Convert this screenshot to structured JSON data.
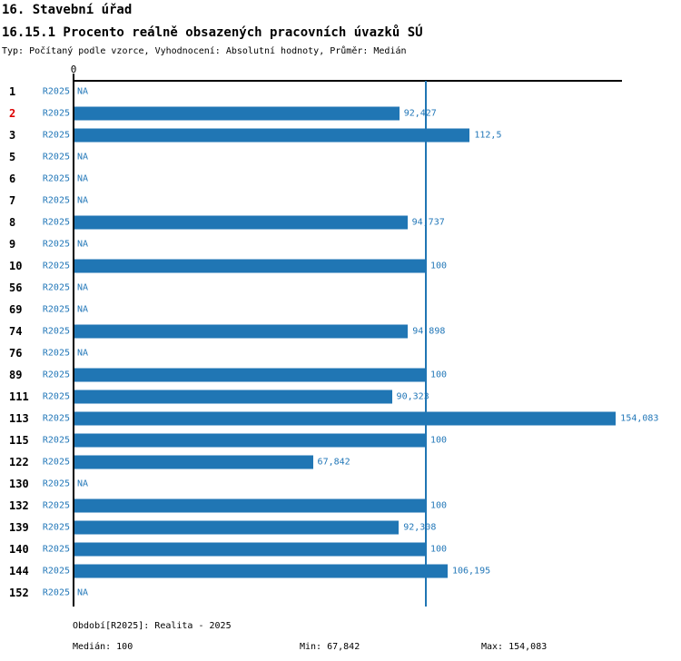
{
  "header": {
    "title": "16. Stavební úřad",
    "subtitle": "16.15.1 Procento reálně obsazených pracovních úvazků SÚ",
    "meta": "Typ: Počítaný podle vzorce, Vyhodnocení: Absolutní hodnoty, Průměr: Medián"
  },
  "chart_data": {
    "type": "bar",
    "orientation": "horizontal",
    "series_label": "R2025",
    "na_label": "NA",
    "categories": [
      "1",
      "2",
      "3",
      "5",
      "6",
      "7",
      "8",
      "9",
      "10",
      "56",
      "69",
      "74",
      "76",
      "89",
      "111",
      "113",
      "115",
      "122",
      "130",
      "132",
      "139",
      "140",
      "144",
      "152"
    ],
    "values": [
      null,
      92.427,
      112.5,
      null,
      null,
      null,
      94.737,
      null,
      100,
      null,
      null,
      94.898,
      null,
      100,
      90.323,
      154.083,
      100,
      67.842,
      null,
      100,
      92.308,
      100,
      106.195,
      null
    ],
    "value_labels": [
      "NA",
      "92,427",
      "112,5",
      "NA",
      "NA",
      "NA",
      "94,737",
      "NA",
      "100",
      "NA",
      "NA",
      "94,898",
      "NA",
      "100",
      "90,323",
      "154,083",
      "100",
      "67,842",
      "NA",
      "100",
      "92,308",
      "100",
      "106,195",
      "NA"
    ],
    "highlighted_category": "2",
    "axis": {
      "zero_label": "0",
      "x_min": 0,
      "x_max": 156,
      "median_reference_line": 100,
      "grid": false
    },
    "colors": {
      "bar": "#2076b4",
      "text_blue": "#2277b8",
      "highlight_red": "#dd0000",
      "axis_black": "#000000"
    },
    "title": "16.15.1 Procento reálně obsazených pracovních úvazků SÚ",
    "xlabel": "",
    "ylabel": ""
  },
  "footer": {
    "period": "Období[R2025]: Realita - 2025",
    "median": "Medián: 100",
    "min": "Min: 67,842",
    "max": "Max: 154,083"
  }
}
